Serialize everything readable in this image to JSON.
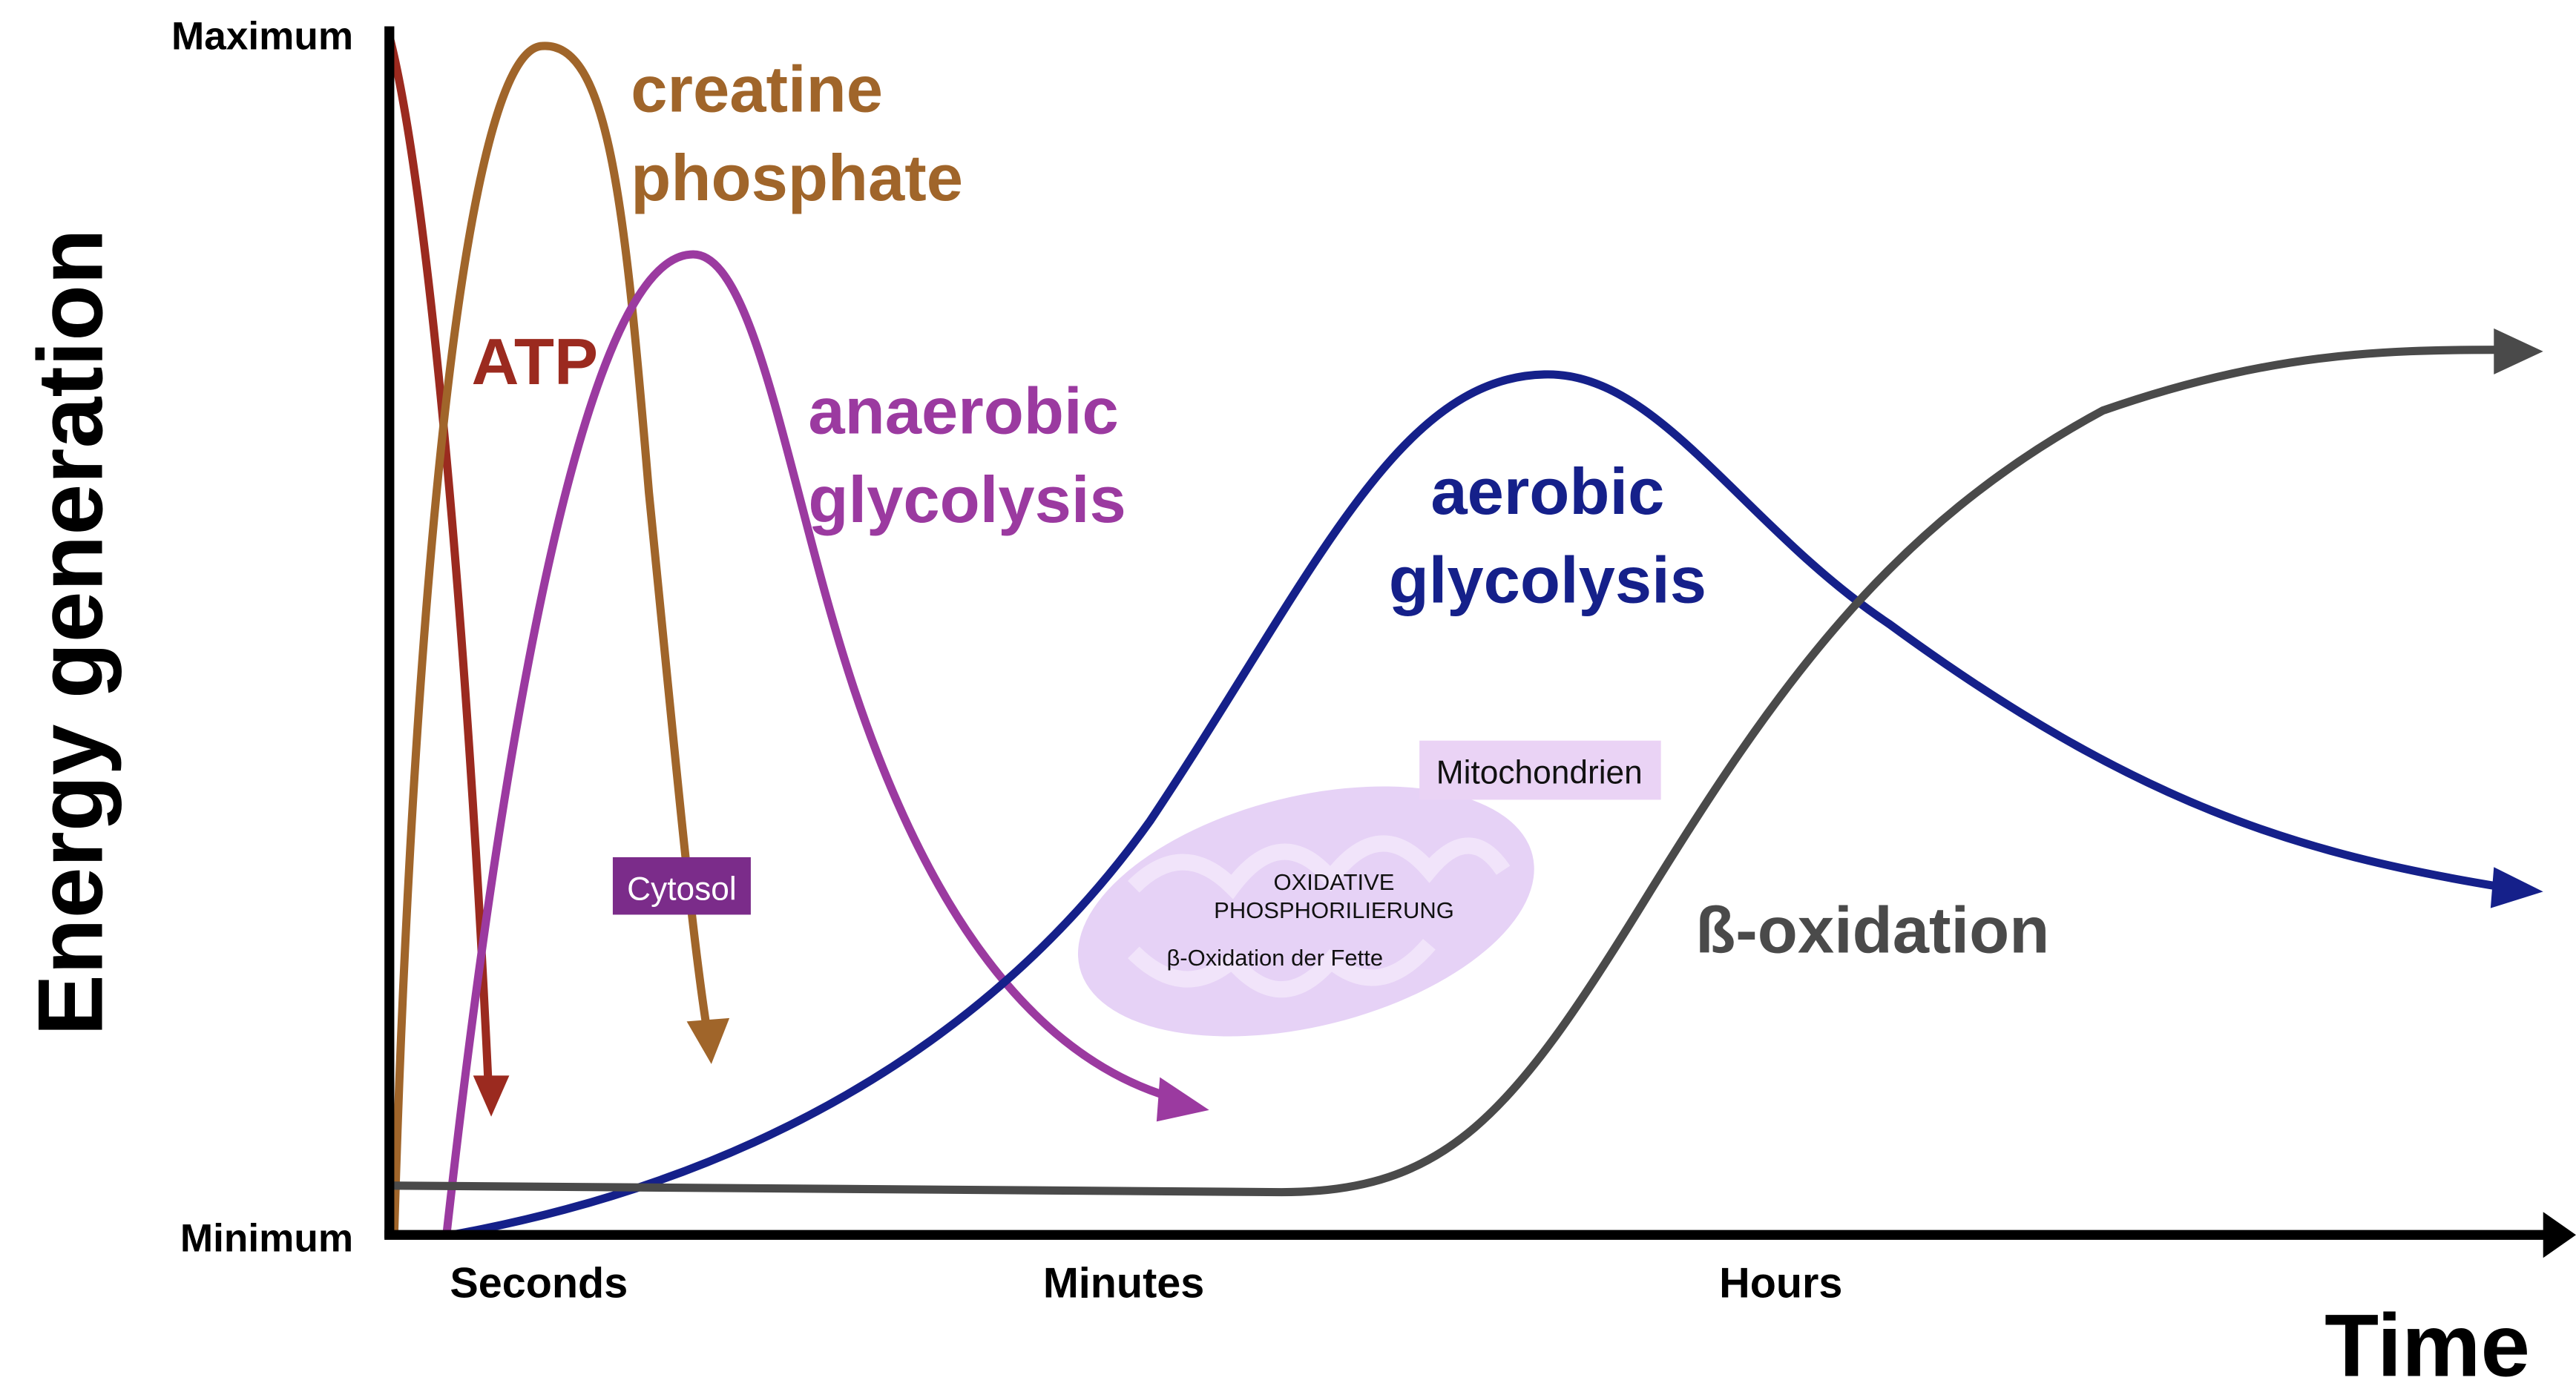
{
  "axes": {
    "y_label": "Energy generation",
    "y_max": "Maximum",
    "y_min": "Minimum",
    "x_label": "Time",
    "x_categories": [
      "Seconds",
      "Minutes",
      "Hours"
    ]
  },
  "curves": [
    {
      "label_lines": [
        "ATP"
      ]
    },
    {
      "label_lines": [
        "creatine",
        "phosphate"
      ]
    },
    {
      "label_lines": [
        "anaerobic",
        "glycolysis"
      ]
    },
    {
      "label_lines": [
        "aerobic",
        "glycolysis"
      ]
    },
    {
      "label_lines": [
        "ß-oxidation"
      ]
    }
  ],
  "annotations": {
    "cytosol": "Cytosol",
    "mitochondria": {
      "label": "Mitochondrien",
      "lines": [
        "OXIDATIVE",
        "PHOSPHORILIERUNG"
      ],
      "sublabel": "β-Oxidation der Fette"
    }
  }
}
